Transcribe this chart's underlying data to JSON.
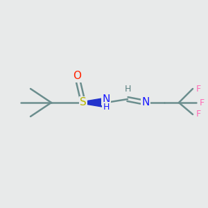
{
  "background_color": "#e8eaea",
  "atom_colors": {
    "C": "#6b8e8e",
    "S": "#b8b800",
    "O": "#ff2200",
    "N": "#1a1aff",
    "H": "#5a8080",
    "F": "#ff69b4"
  },
  "bond_color": "#6b8e8e",
  "bond_width": 1.8,
  "fig_width": 3.0,
  "fig_height": 3.0,
  "dpi": 100
}
